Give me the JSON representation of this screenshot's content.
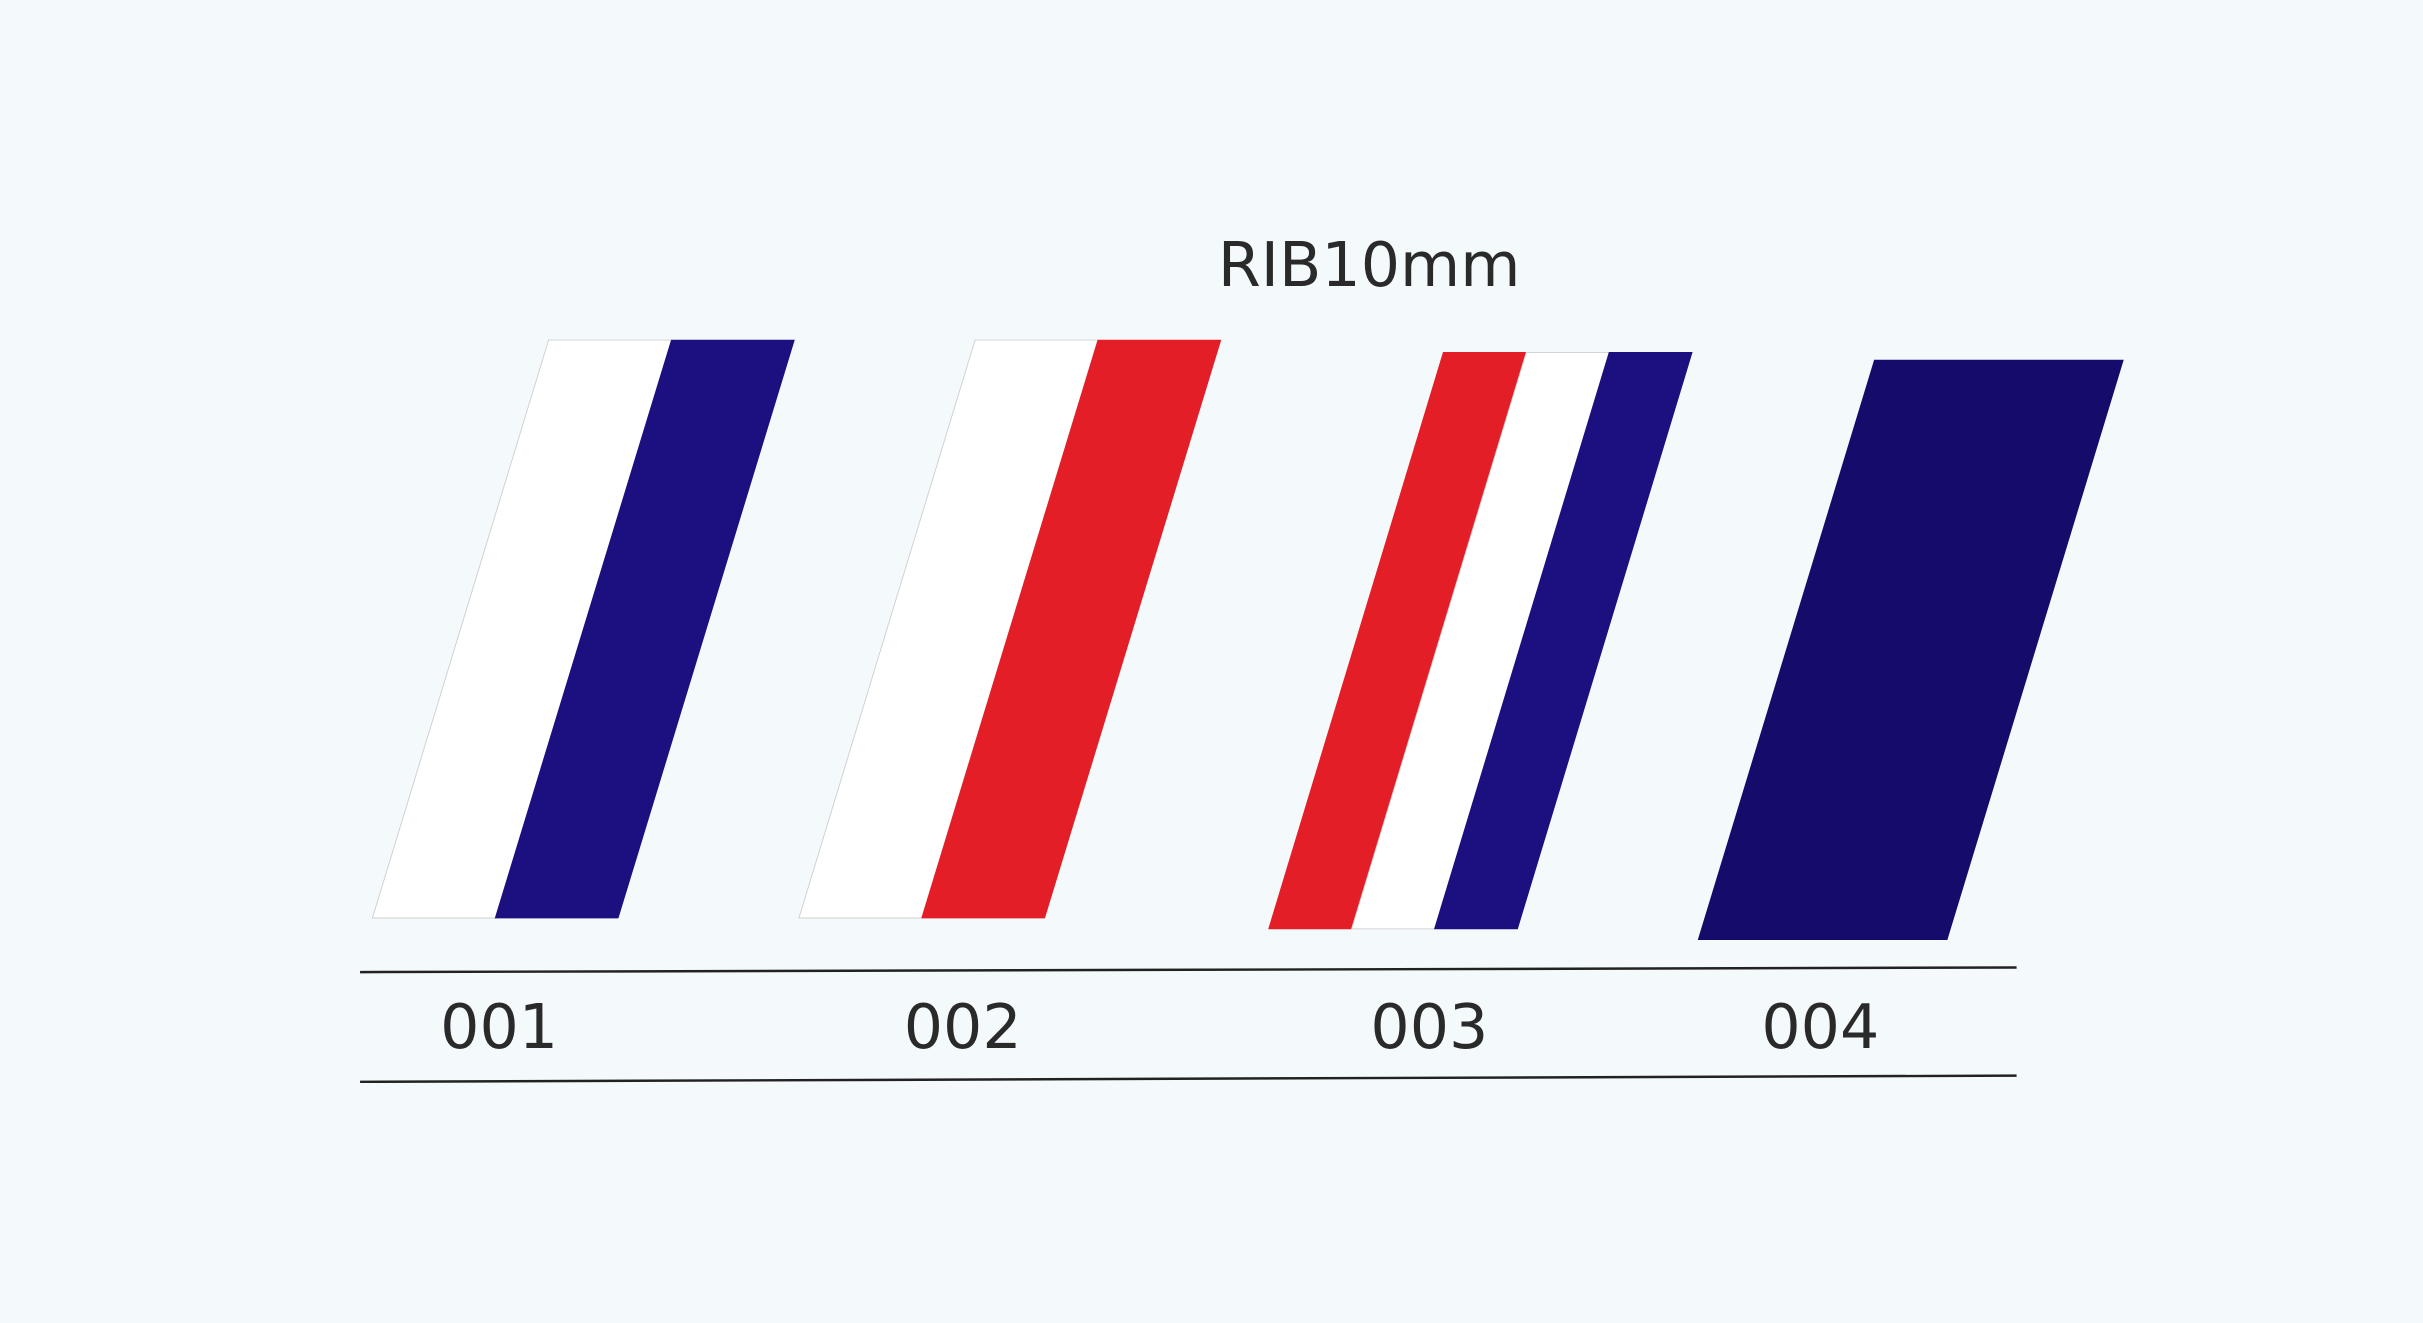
{
  "title": "RIB10mm",
  "items": [
    {
      "label": "001",
      "colors": [
        "#ffffff",
        "#1c0f80"
      ]
    },
    {
      "label": "002",
      "colors": [
        "#ffffff",
        "#e31e26"
      ]
    },
    {
      "label": "003",
      "colors": [
        "#e31e26",
        "#ffffff",
        "#1c0f80"
      ]
    },
    {
      "label": "004",
      "colors": [
        "#150b6b"
      ]
    }
  ]
}
